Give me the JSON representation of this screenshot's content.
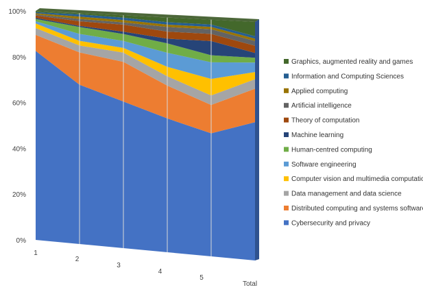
{
  "chart_data": {
    "type": "area",
    "stacked": "100%",
    "projection": "3d",
    "categories": [
      "1",
      "2",
      "3",
      "4",
      "5",
      "Total"
    ],
    "y_ticks": [
      "0%",
      "20%",
      "40%",
      "60%",
      "80%",
      "100%"
    ],
    "ylim": [
      0,
      100
    ],
    "legend_position": "right",
    "grid": true,
    "series": [
      {
        "name": "Cybersecurity and privacy",
        "color": "#4472c4",
        "values": [
          83,
          69,
          63,
          57,
          52,
          58
        ]
      },
      {
        "name": "Distributed computing and systems software",
        "color": "#ed7d31",
        "values": [
          7,
          14,
          17,
          14,
          12,
          14
        ]
      },
      {
        "name": "Data management and data science",
        "color": "#a5a5a5",
        "values": [
          3,
          3,
          4,
          4,
          4,
          4
        ]
      },
      {
        "name": "Computer vision and multimedia computation",
        "color": "#ffc000",
        "values": [
          2,
          2,
          2,
          4,
          7,
          3
        ]
      },
      {
        "name": "Software engineering",
        "color": "#5b9bd5",
        "values": [
          1,
          3,
          3,
          6,
          7,
          4
        ]
      },
      {
        "name": "Human-centred computing",
        "color": "#70ad47",
        "values": [
          1,
          3,
          3,
          4,
          3,
          2
        ]
      },
      {
        "name": "Machine learning",
        "color": "#264478",
        "values": [
          0.5,
          0.5,
          1,
          2,
          6,
          2
        ]
      },
      {
        "name": "Theory of computation",
        "color": "#9e480e",
        "values": [
          1,
          2,
          3,
          3,
          3,
          3
        ]
      },
      {
        "name": "Artificial intelligence",
        "color": "#636363",
        "values": [
          0.5,
          1,
          1,
          2,
          2,
          2
        ]
      },
      {
        "name": "Applied computing",
        "color": "#997300",
        "values": [
          0.5,
          1,
          1,
          1,
          1,
          1
        ]
      },
      {
        "name": "Information and Computing Sciences",
        "color": "#255e91",
        "values": [
          0.5,
          1,
          1,
          1,
          1,
          1
        ]
      },
      {
        "name": "Graphics, augmented reality and games",
        "color": "#43682b",
        "values": [
          0.5,
          0.5,
          1,
          2,
          2,
          6
        ]
      }
    ]
  }
}
